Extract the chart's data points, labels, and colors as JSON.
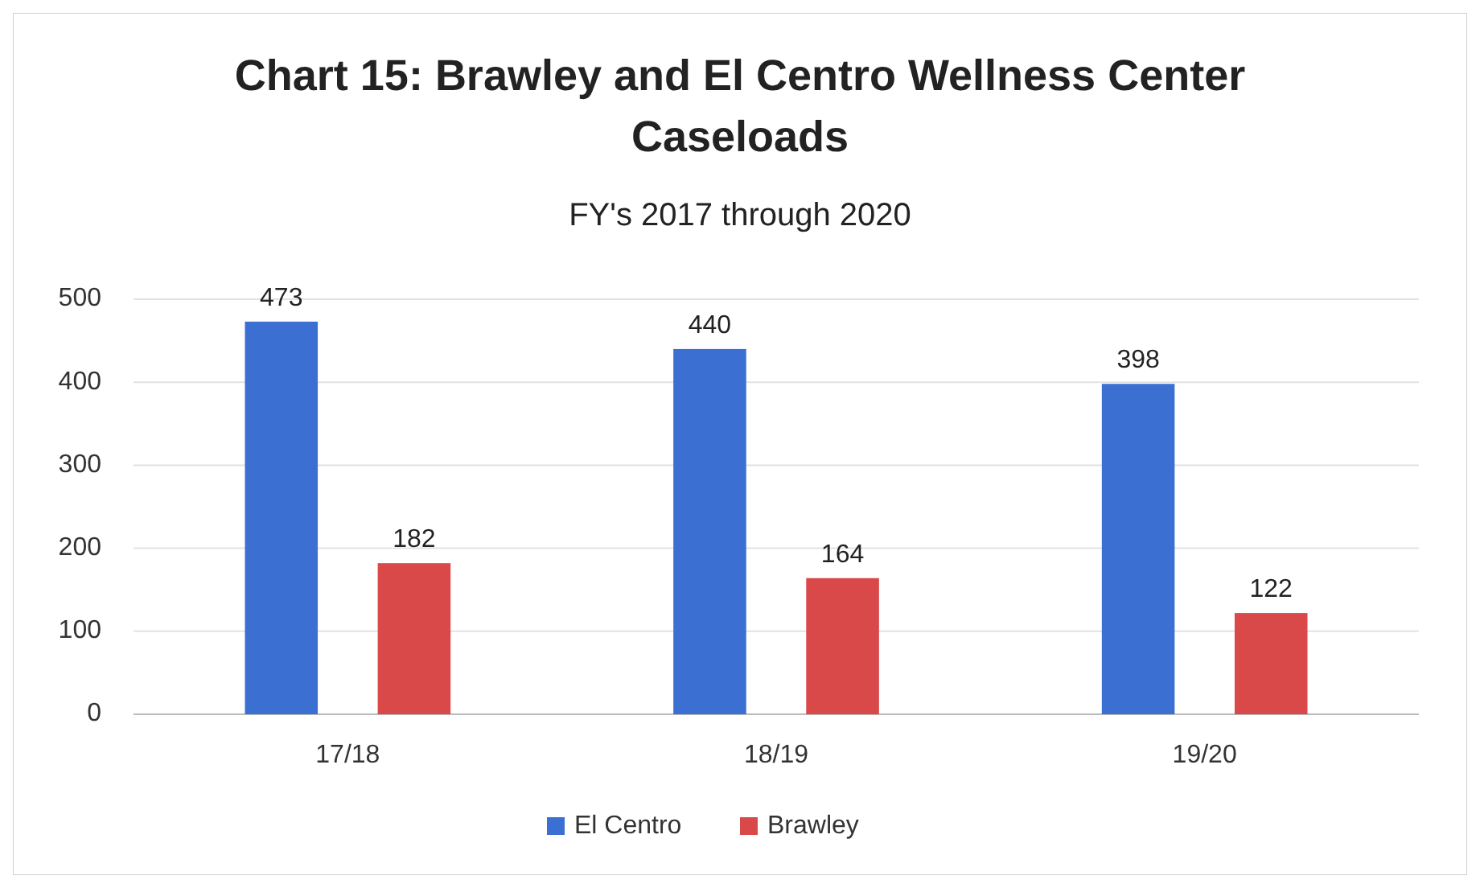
{
  "chart_data": {
    "type": "bar",
    "title": "Chart 15: Brawley and El Centro Wellness Center Caseloads",
    "subtitle": "FY's 2017 through 2020",
    "categories": [
      "17/18",
      "18/19",
      "19/20"
    ],
    "series": [
      {
        "name": "El Centro",
        "color": "#3b6fd1",
        "values": [
          473,
          440,
          398
        ]
      },
      {
        "name": "Brawley",
        "color": "#d9494a",
        "values": [
          182,
          164,
          122
        ]
      }
    ],
    "ylim": [
      0,
      500
    ],
    "yticks": [
      0,
      100,
      200,
      300,
      400,
      500
    ],
    "grid": "y",
    "legend": "bottom",
    "data_labels": true
  }
}
